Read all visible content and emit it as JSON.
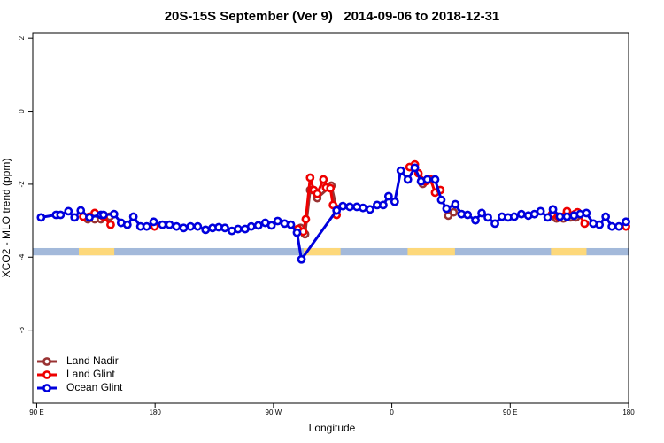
{
  "chart_data": {
    "type": "line",
    "title": "20S-15S September (Ver 9)   2014-09-06 to 2018-12-31",
    "xlabel": "Longitude",
    "ylabel": "XCO2 - MLO trend (ppm)",
    "xlim": [
      87,
      540
    ],
    "ylim": [
      -8.0,
      2.15
    ],
    "xticks": [
      {
        "value": 90,
        "label": "90 E"
      },
      180,
      {
        "value": 270,
        "label": "90 W"
      },
      {
        "value": 360,
        "label": "0"
      },
      {
        "value": 450,
        "label": "90 E"
      },
      {
        "value": 540,
        "label": "180"
      }
    ],
    "yticks": [
      2,
      0,
      -2,
      -4,
      -6
    ],
    "legend": "bottom-left",
    "strip": {
      "ylim": [
        -3.95,
        -3.75
      ],
      "color": "#a3b9da",
      "land_color": "#fdd87a",
      "land": [
        [
          122,
          149
        ],
        [
          293,
          321
        ],
        [
          372,
          408
        ],
        [
          481,
          508
        ]
      ]
    },
    "series": [
      {
        "name": "Land Nadir",
        "color": "#993333",
        "x": [
          128.8,
          134.1,
          138.8,
          145.5,
          null,
          290.6,
          294,
          297.9,
          303.3,
          314,
          318,
          null,
          383.5,
          null,
          402.9,
          406.9,
          null,
          485.2,
          490.5,
          495.9,
          499.9
        ],
        "values": [
          -2.96,
          -2.96,
          -2.96,
          -2.89,
          null,
          -3.2,
          -3.37,
          -2.16,
          -2.38,
          -2.04,
          -2.67,
          null,
          -1.99,
          null,
          -2.86,
          -2.77,
          null,
          -2.94,
          -2.94,
          -2.91,
          -2.91
        ]
      },
      {
        "name": "Land Glint",
        "color": "#ee0000",
        "x": [
          125.4,
          130.1,
          134.1,
          140.8,
          146.2,
          null,
          179.6,
          null,
          288.6,
          292.6,
          294.6,
          297.9,
          300.6,
          303.3,
          308,
          310,
          313.3,
          315.3,
          318,
          null,
          373.5,
          377.5,
          380.2,
          385.5,
          389.5,
          392.9,
          396.9,
          null,
          481.8,
          486.5,
          493.2,
          499.2,
          501.2,
          506.6,
          null,
          538
        ],
        "values": [
          -2.89,
          -2.89,
          -2.79,
          -2.89,
          -3.11,
          null,
          -3.16,
          null,
          -3.23,
          -3.3,
          -2.96,
          -1.82,
          -2.16,
          -2.26,
          -1.87,
          -2.09,
          -2.11,
          -2.57,
          -2.84,
          null,
          -1.53,
          -1.46,
          -1.7,
          -1.92,
          -1.87,
          -2.23,
          -2.16,
          null,
          -2.82,
          -2.89,
          -2.74,
          -2.82,
          -2.77,
          -3.08,
          null,
          -3.16
        ]
      },
      {
        "name": "Ocean Glint",
        "color": "#0000dd",
        "x": [
          93.3,
          104.7,
          108.1,
          114.1,
          118.8,
          123.5,
          130.1,
          138.8,
          140.8,
          148.8,
          154.2,
          158.9,
          163.5,
          168.9,
          173.6,
          178.9,
          185.6,
          191,
          196.3,
          201.7,
          207,
          212.4,
          218.4,
          223.7,
          228.4,
          233.1,
          238.4,
          243.1,
          248.5,
          253.1,
          258.5,
          263.8,
          268.5,
          273.2,
          278.5,
          283.2,
          287.9,
          291.3,
          318,
          322.7,
          328,
          333.4,
          338.1,
          343.4,
          348.8,
          353.5,
          357.5,
          362.2,
          366.8,
          372.2,
          377.5,
          382.2,
          386.9,
          392.9,
          397.6,
          401.6,
          408.3,
          413,
          417.6,
          423.6,
          428.3,
          433,
          438.4,
          443.7,
          448.4,
          453.1,
          458.5,
          463.8,
          468.4,
          473.1,
          478.5,
          482.5,
          487.8,
          493.2,
          498.5,
          503.2,
          507.9,
          513.2,
          517.9,
          522.6,
          527.3,
          532.6,
          538
        ],
        "values": [
          -2.91,
          -2.84,
          -2.84,
          -2.74,
          -2.91,
          -2.72,
          -2.91,
          -2.84,
          -2.84,
          -2.82,
          -3.06,
          -3.11,
          -2.89,
          -3.16,
          -3.16,
          -3.03,
          -3.11,
          -3.11,
          -3.16,
          -3.2,
          -3.16,
          -3.16,
          -3.25,
          -3.2,
          -3.18,
          -3.2,
          -3.28,
          -3.23,
          -3.23,
          -3.16,
          -3.13,
          -3.06,
          -3.13,
          -3.01,
          -3.08,
          -3.11,
          -3.33,
          -4.06,
          -2.72,
          -2.6,
          -2.62,
          -2.62,
          -2.65,
          -2.69,
          -2.57,
          -2.57,
          -2.33,
          -2.48,
          -1.63,
          -1.87,
          -1.55,
          -1.92,
          -1.87,
          -1.87,
          -2.43,
          -2.67,
          -2.55,
          -2.82,
          -2.84,
          -2.99,
          -2.79,
          -2.91,
          -3.08,
          -2.89,
          -2.91,
          -2.89,
          -2.82,
          -2.86,
          -2.82,
          -2.74,
          -2.91,
          -2.69,
          -2.89,
          -2.89,
          -2.86,
          -2.82,
          -2.79,
          -3.08,
          -3.11,
          -2.89,
          -3.16,
          -3.16,
          -3.03
        ]
      }
    ]
  }
}
